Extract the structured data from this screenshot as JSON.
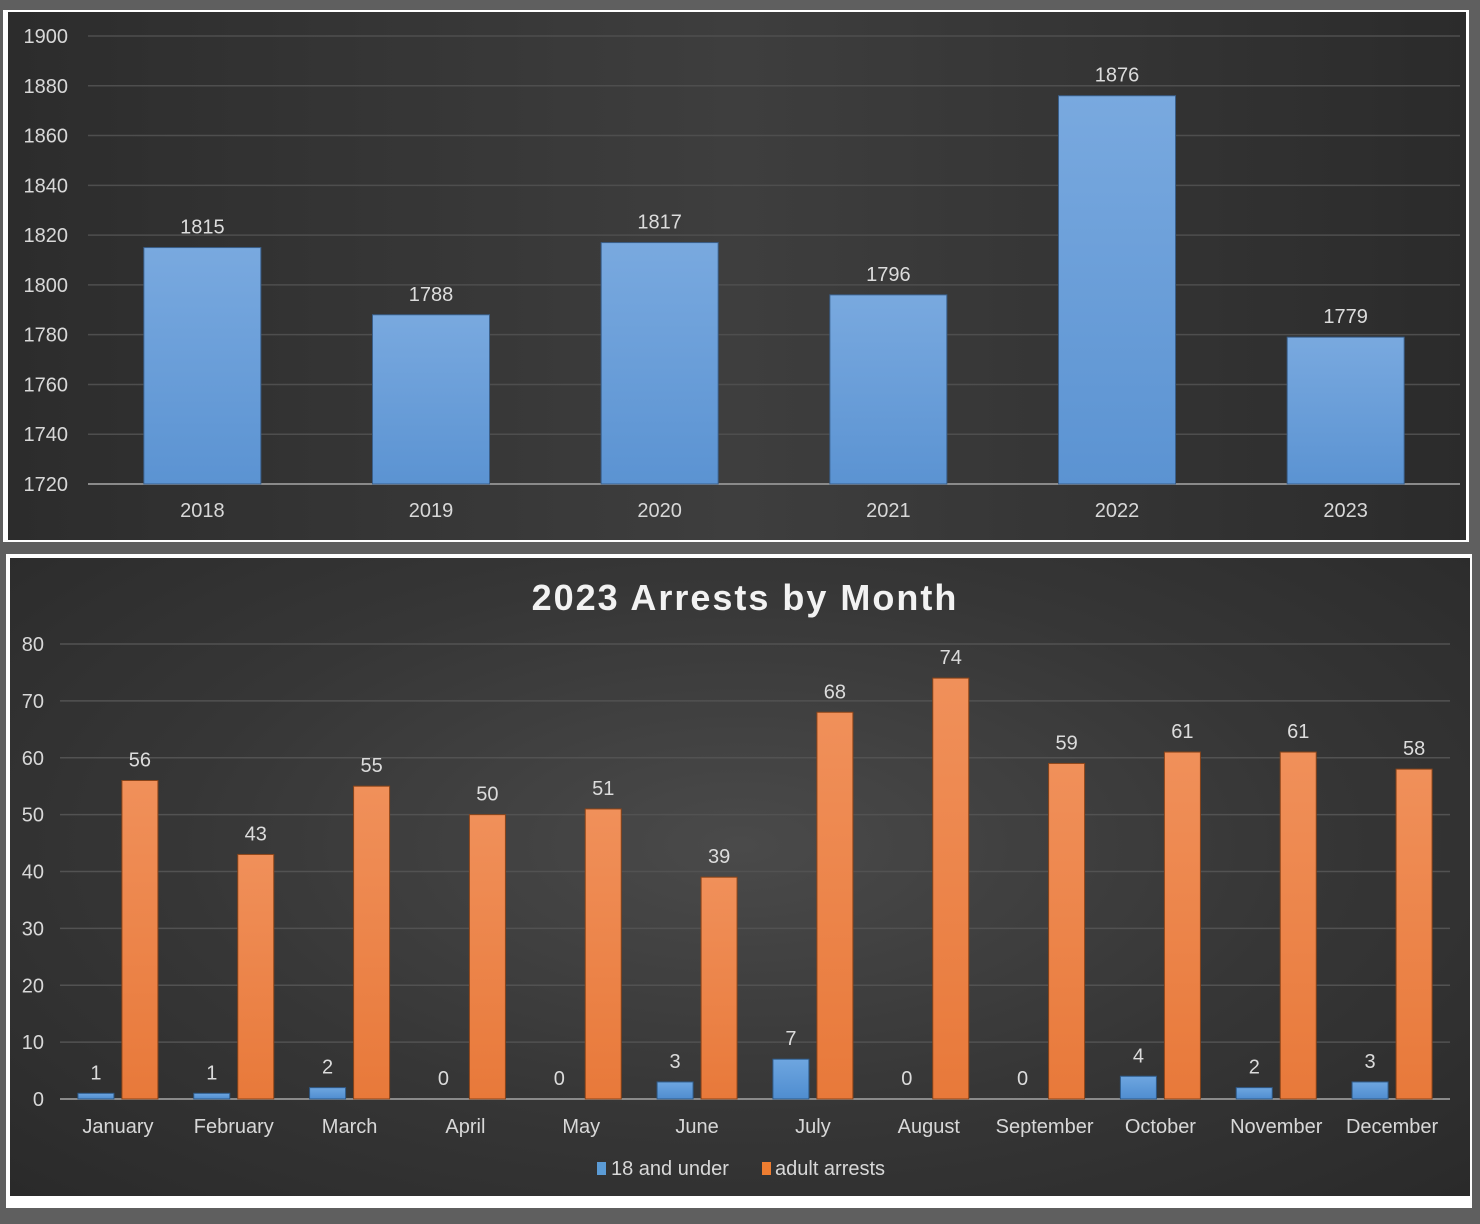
{
  "chart_data": [
    {
      "type": "bar",
      "title": "",
      "xlabel": "",
      "ylabel": "",
      "categories": [
        "2018",
        "2019",
        "2020",
        "2021",
        "2022",
        "2023"
      ],
      "values": [
        1815,
        1788,
        1817,
        1796,
        1876,
        1779
      ],
      "data_labels": [
        "1815",
        "1788",
        "1817",
        "1796",
        "1876",
        "1779"
      ],
      "ylim": [
        1720,
        1900
      ],
      "yticks": [
        1720,
        1740,
        1760,
        1780,
        1800,
        1820,
        1840,
        1860,
        1880,
        1900
      ],
      "ytick_labels": [
        "1720",
        "1740",
        "1760",
        "1780",
        "1800",
        "1820",
        "1840",
        "1860",
        "1880",
        "1900"
      ],
      "grid": true,
      "legend": "none",
      "colors": {
        "bar": "#6a9fd8"
      }
    },
    {
      "type": "bar",
      "title": "2023 Arrests by Month",
      "xlabel": "",
      "ylabel": "",
      "categories": [
        "January",
        "February",
        "March",
        "April",
        "May",
        "June",
        "July",
        "August",
        "September",
        "October",
        "November",
        "December"
      ],
      "series": [
        {
          "name": "18 and under",
          "color": "#5b9bd5",
          "values": [
            1,
            1,
            2,
            0,
            0,
            3,
            7,
            0,
            0,
            4,
            2,
            3
          ],
          "data_labels": [
            "1",
            "1",
            "2",
            "0",
            "0",
            "3",
            "7",
            "0",
            "0",
            "4",
            "2",
            "3"
          ]
        },
        {
          "name": "adult arrests",
          "color": "#ed7d31",
          "values": [
            56,
            43,
            55,
            50,
            51,
            39,
            68,
            74,
            59,
            61,
            61,
            58
          ],
          "data_labels": [
            "56",
            "43",
            "55",
            "50",
            "51",
            "39",
            "68",
            "74",
            "59",
            "61",
            "61",
            "58"
          ]
        }
      ],
      "ylim": [
        0,
        80
      ],
      "yticks": [
        0,
        10,
        20,
        30,
        40,
        50,
        60,
        70,
        80
      ],
      "ytick_labels": [
        "0",
        "10",
        "20",
        "30",
        "40",
        "50",
        "60",
        "70",
        "80"
      ],
      "grid": true,
      "legend": "bottom"
    }
  ]
}
